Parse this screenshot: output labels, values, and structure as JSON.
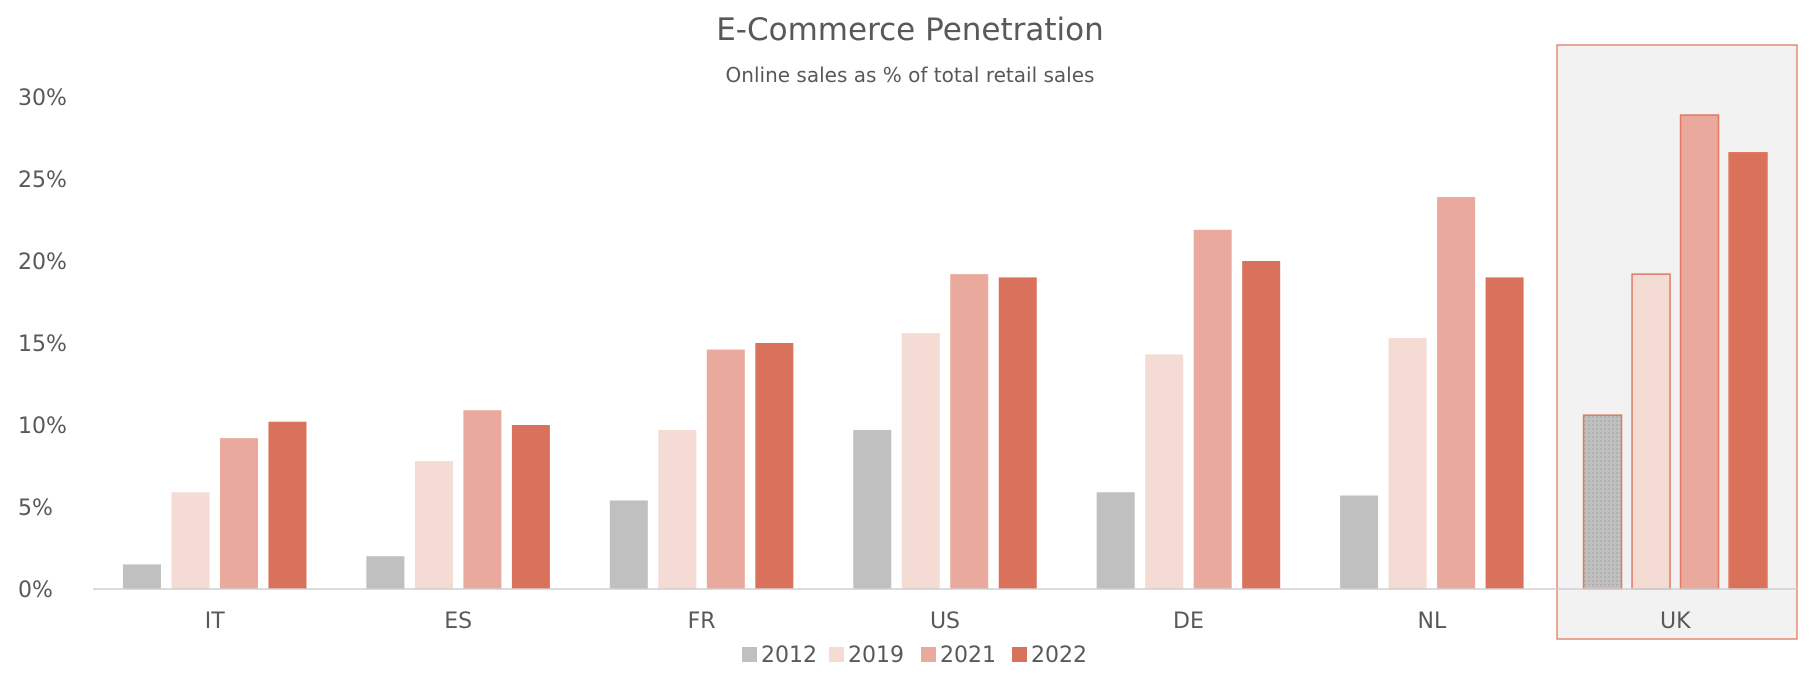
{
  "chart_data": {
    "type": "bar",
    "title": "E-Commerce Penetration",
    "subtitle": "Online sales as % of total retail sales",
    "categories": [
      "IT",
      "ES",
      "FR",
      "US",
      "DE",
      "NL",
      "UK"
    ],
    "highlighted_category": "UK",
    "y_ticks": [
      "0%",
      "5%",
      "10%",
      "15%",
      "20%",
      "25%",
      "30%"
    ],
    "ylim": [
      0,
      30
    ],
    "legend_position": "bottom",
    "grid": false,
    "series": [
      {
        "name": "2012",
        "color": "#c0c0c0",
        "values": [
          1.5,
          2.0,
          5.4,
          9.7,
          5.9,
          5.7,
          10.6
        ]
      },
      {
        "name": "2019",
        "color": "#f4dbd4",
        "values": [
          5.9,
          7.8,
          9.7,
          15.6,
          14.3,
          15.3,
          19.2
        ]
      },
      {
        "name": "2021",
        "color": "#e9a99c",
        "values": [
          9.2,
          10.9,
          14.6,
          19.2,
          21.9,
          23.9,
          28.9
        ]
      },
      {
        "name": "2022",
        "color": "#da715a",
        "values": [
          10.2,
          10.0,
          15.0,
          19.0,
          20.0,
          19.0,
          26.6
        ]
      }
    ],
    "highlight_colors": {
      "box_fill": "#f2f2f2",
      "box_border": "#e07a60"
    }
  }
}
